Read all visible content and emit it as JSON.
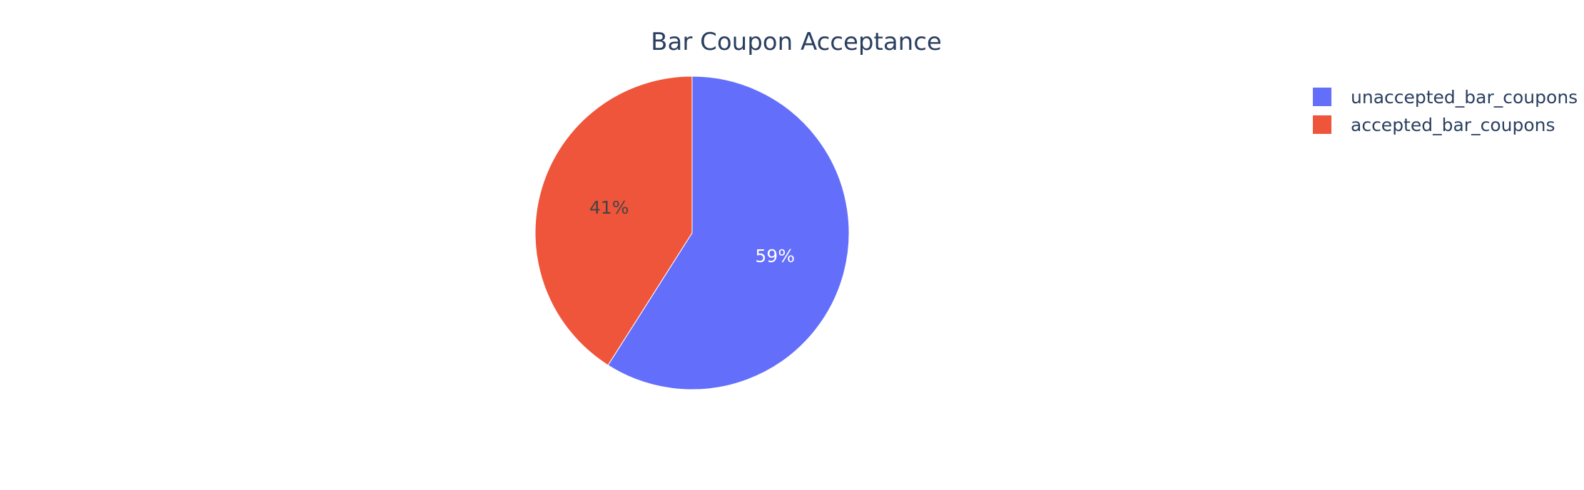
{
  "chart_data": {
    "type": "pie",
    "title": "Bar Coupon Acceptance",
    "labels": [
      "unaccepted_bar_coupons",
      "accepted_bar_coupons"
    ],
    "values": [
      59,
      41
    ],
    "text_labels": [
      "59%",
      "41%"
    ],
    "colors": [
      "#636efa",
      "#ef553b"
    ],
    "legend_position": "top-right"
  }
}
